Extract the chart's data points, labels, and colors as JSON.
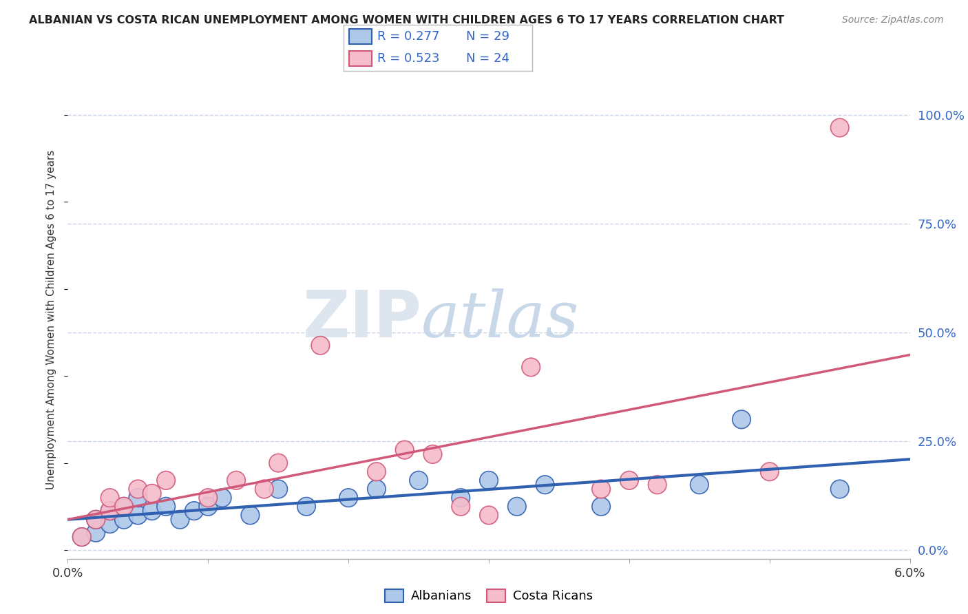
{
  "title": "ALBANIAN VS COSTA RICAN UNEMPLOYMENT AMONG WOMEN WITH CHILDREN AGES 6 TO 17 YEARS CORRELATION CHART",
  "source": "Source: ZipAtlas.com",
  "ylabel": "Unemployment Among Women with Children Ages 6 to 17 years",
  "xlim": [
    0.0,
    0.06
  ],
  "ylim": [
    -0.02,
    1.08
  ],
  "xticks": [
    0.0,
    0.01,
    0.02,
    0.03,
    0.04,
    0.05,
    0.06
  ],
  "xticklabels": [
    "0.0%",
    "",
    "",
    "",
    "",
    "",
    "6.0%"
  ],
  "yticks_right": [
    0.0,
    0.25,
    0.5,
    0.75,
    1.0
  ],
  "yticklabels_right": [
    "0.0%",
    "25.0%",
    "50.0%",
    "75.0%",
    "100.0%"
  ],
  "albanian_r": "R = 0.277",
  "albanian_n": "N = 29",
  "costarican_r": "R = 0.523",
  "costarican_n": "N = 24",
  "albanian_color": "#adc8e8",
  "costarican_color": "#f5bccb",
  "albanian_line_color": "#3060b0",
  "costarican_line_color": "#d05878",
  "watermark1": "ZIP",
  "watermark2": "atlas",
  "background_color": "#ffffff",
  "grid_color": "#c8d4e8",
  "albanian_x": [
    0.001,
    0.002,
    0.002,
    0.003,
    0.003,
    0.004,
    0.004,
    0.005,
    0.005,
    0.006,
    0.007,
    0.008,
    0.009,
    0.01,
    0.011,
    0.013,
    0.015,
    0.017,
    0.02,
    0.022,
    0.025,
    0.028,
    0.03,
    0.032,
    0.034,
    0.038,
    0.045,
    0.048,
    0.055
  ],
  "albanian_y": [
    0.03,
    0.04,
    0.07,
    0.06,
    0.09,
    0.07,
    0.1,
    0.08,
    0.12,
    0.09,
    0.1,
    0.07,
    0.09,
    0.1,
    0.12,
    0.08,
    0.14,
    0.1,
    0.12,
    0.14,
    0.16,
    0.12,
    0.16,
    0.1,
    0.15,
    0.1,
    0.15,
    0.3,
    0.14
  ],
  "costarican_x": [
    0.001,
    0.002,
    0.003,
    0.003,
    0.004,
    0.005,
    0.006,
    0.007,
    0.01,
    0.012,
    0.014,
    0.015,
    0.018,
    0.022,
    0.024,
    0.026,
    0.028,
    0.03,
    0.033,
    0.038,
    0.04,
    0.042,
    0.05,
    0.055
  ],
  "costarican_y": [
    0.03,
    0.07,
    0.09,
    0.12,
    0.1,
    0.14,
    0.13,
    0.16,
    0.12,
    0.16,
    0.14,
    0.2,
    0.47,
    0.18,
    0.23,
    0.22,
    0.1,
    0.08,
    0.42,
    0.14,
    0.16,
    0.15,
    0.18,
    0.97
  ]
}
